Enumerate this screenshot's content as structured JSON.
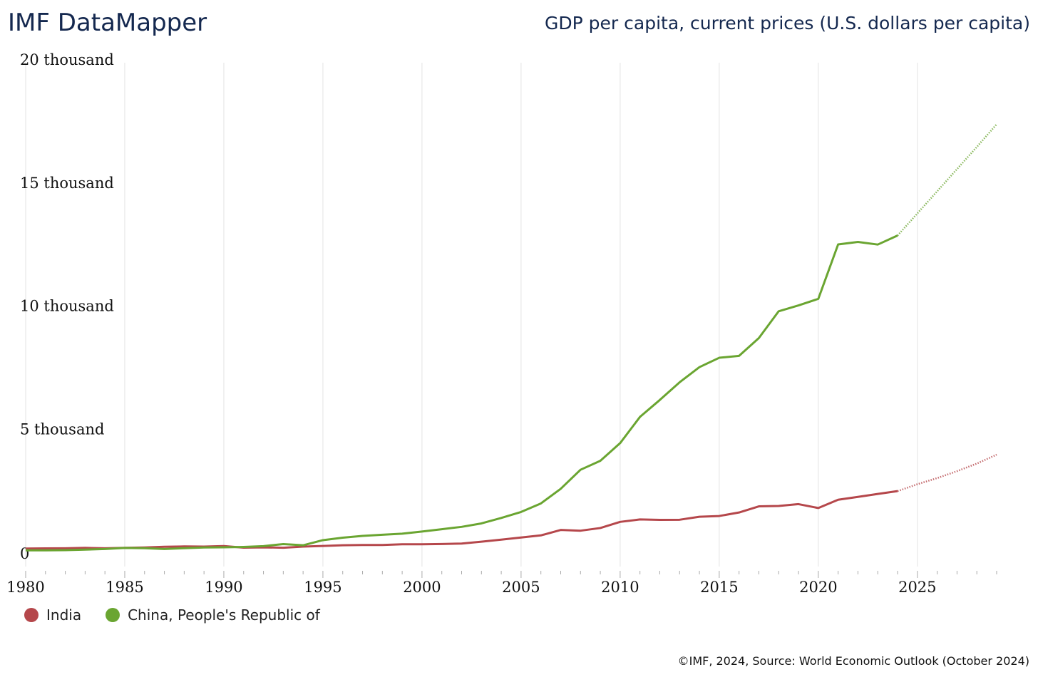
{
  "header": {
    "title": "IMF DataMapper",
    "subtitle": "GDP per capita, current prices (U.S. dollars per capita)"
  },
  "footer": {
    "source": "©IMF, 2024, Source: World Economic Outlook (October 2024)"
  },
  "chart_data": {
    "type": "line",
    "title": "GDP per capita, current prices (U.S. dollars per capita)",
    "xlabel": "",
    "ylabel": "",
    "xlim": [
      1980,
      2029
    ],
    "ylim": [
      0,
      20000
    ],
    "x_ticks": [
      "1980",
      "1985",
      "1990",
      "1995",
      "2000",
      "2005",
      "2010",
      "2015",
      "2020",
      "2025"
    ],
    "y_ticks": [
      {
        "value": 0,
        "label": "0"
      },
      {
        "value": 5000,
        "label": "5 thousand"
      },
      {
        "value": 10000,
        "label": "10 thousand"
      },
      {
        "value": 15000,
        "label": "15 thousand"
      },
      {
        "value": 20000,
        "label": "20 thousand"
      }
    ],
    "grid": "vertical",
    "legend_position": "bottom-left",
    "projection_start": 2024,
    "x": [
      1980,
      1981,
      1982,
      1983,
      1984,
      1985,
      1986,
      1987,
      1988,
      1989,
      1990,
      1991,
      1992,
      1993,
      1994,
      1995,
      1996,
      1997,
      1998,
      1999,
      2000,
      2001,
      2002,
      2003,
      2004,
      2005,
      2006,
      2007,
      2008,
      2009,
      2010,
      2011,
      2012,
      2013,
      2014,
      2015,
      2016,
      2017,
      2018,
      2019,
      2020,
      2021,
      2022,
      2023,
      2024,
      2025,
      2026,
      2027,
      2028,
      2029
    ],
    "series": [
      {
        "name": "India",
        "color": "#b5474b",
        "values": [
          267,
          275,
          280,
          295,
          280,
          298,
          311,
          340,
          353,
          346,
          368,
          303,
          316,
          301,
          346,
          374,
          400,
          414,
          413,
          441,
          443,
          452,
          471,
          547,
          628,
          715,
          802,
          1023,
          993,
          1102,
          1351,
          1450,
          1434,
          1438,
          1560,
          1590,
          1732,
          1981,
          1997,
          2072,
          1913,
          2250,
          2366,
          2485,
          2600,
          2880,
          3130,
          3410,
          3720,
          4080
        ]
      },
      {
        "name": "China, People's Republic of",
        "color": "#6aa531",
        "values": [
          195,
          197,
          203,
          225,
          251,
          294,
          282,
          251,
          283,
          310,
          317,
          333,
          366,
          450,
          400,
          609,
          709,
          781,
          828,
          873,
          959,
          1053,
          1149,
          1289,
          1509,
          1753,
          2099,
          2694,
          3468,
          3832,
          4550,
          5614,
          6301,
          7020,
          7636,
          8016,
          8094,
          8817,
          9905,
          10144,
          10409,
          12618,
          12720,
          12614,
          12980,
          13880,
          14780,
          15680,
          16580,
          17500
        ]
      }
    ]
  }
}
